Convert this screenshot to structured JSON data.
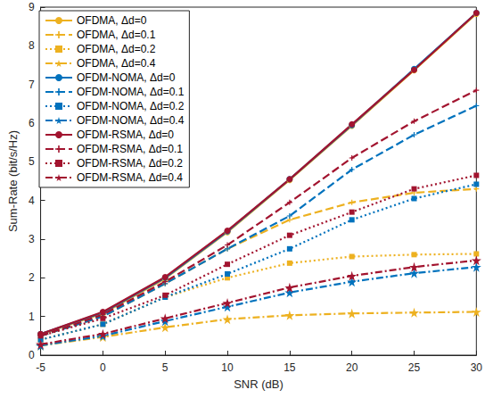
{
  "chart_data": {
    "type": "line",
    "x_label": "SNR (dB)",
    "y_label": "Sum-Rate (bit/s/Hz)",
    "x": [
      -5,
      0,
      5,
      10,
      15,
      20,
      25,
      30
    ],
    "xlim": [
      -5,
      30
    ],
    "xticks": [
      -5,
      0,
      5,
      10,
      15,
      20,
      25,
      30
    ],
    "ylim": [
      0,
      9
    ],
    "yticks": [
      0,
      1,
      2,
      3,
      4,
      5,
      6,
      7,
      8,
      9
    ],
    "grid": false,
    "legend": "upper left",
    "series": [
      {
        "name": "OFDMA, Δd=0",
        "color": "#EDB120",
        "line_style": "solid",
        "marker": "circle",
        "values": [
          0.54,
          1.08,
          1.98,
          3.18,
          4.53,
          5.93,
          7.37,
          8.83
        ]
      },
      {
        "name": "OFDMA, Δd=0.1",
        "color": "#EDB120",
        "line_style": "dashed",
        "marker": "plus",
        "values": [
          0.5,
          1.0,
          1.85,
          2.75,
          3.5,
          3.95,
          4.2,
          4.3
        ]
      },
      {
        "name": "OFDMA, Δd=0.2",
        "color": "#EDB120",
        "line_style": "dotted",
        "marker": "square",
        "values": [
          0.4,
          0.8,
          1.5,
          2.0,
          2.38,
          2.55,
          2.6,
          2.62
        ]
      },
      {
        "name": "OFDMA, Δd=0.4",
        "color": "#EDB120",
        "line_style": "dashdot",
        "marker": "star",
        "values": [
          0.25,
          0.47,
          0.72,
          0.93,
          1.03,
          1.08,
          1.1,
          1.12
        ]
      },
      {
        "name": "OFDM-NOMA, Δd=0",
        "color": "#0072BD",
        "line_style": "solid",
        "marker": "circle",
        "values": [
          0.55,
          1.1,
          2.0,
          3.2,
          4.55,
          5.95,
          7.4,
          8.85
        ]
      },
      {
        "name": "OFDM-NOMA, Δd=0.1",
        "color": "#0072BD",
        "line_style": "dashed",
        "marker": "plus",
        "values": [
          0.5,
          1.0,
          1.85,
          2.75,
          3.6,
          4.8,
          5.7,
          6.45
        ]
      },
      {
        "name": "OFDM-NOMA, Δd=0.2",
        "color": "#0072BD",
        "line_style": "dotted",
        "marker": "square",
        "values": [
          0.4,
          0.8,
          1.5,
          2.1,
          2.75,
          3.5,
          4.05,
          4.42
        ]
      },
      {
        "name": "OFDM-NOMA, Δd=0.4",
        "color": "#0072BD",
        "line_style": "dashdot",
        "marker": "star",
        "values": [
          0.25,
          0.5,
          0.88,
          1.25,
          1.62,
          1.9,
          2.12,
          2.28
        ]
      },
      {
        "name": "OFDM-RSMA, Δd=0",
        "color": "#A2142F",
        "line_style": "solid",
        "marker": "circle",
        "values": [
          0.55,
          1.12,
          2.02,
          3.22,
          4.55,
          5.97,
          7.38,
          8.85
        ]
      },
      {
        "name": "OFDM-RSMA, Δd=0.1",
        "color": "#A2142F",
        "line_style": "dashed",
        "marker": "plus",
        "values": [
          0.5,
          1.05,
          1.9,
          2.85,
          3.95,
          5.1,
          6.05,
          6.85
        ]
      },
      {
        "name": "OFDM-RSMA, Δd=0.2",
        "color": "#A2142F",
        "line_style": "dotted",
        "marker": "square",
        "values": [
          0.5,
          0.95,
          1.55,
          2.35,
          3.1,
          3.7,
          4.3,
          4.65
        ]
      },
      {
        "name": "OFDM-RSMA, Δd=0.4",
        "color": "#A2142F",
        "line_style": "dashdot",
        "marker": "star",
        "values": [
          0.28,
          0.55,
          0.95,
          1.35,
          1.75,
          2.05,
          2.28,
          2.45
        ]
      }
    ]
  }
}
